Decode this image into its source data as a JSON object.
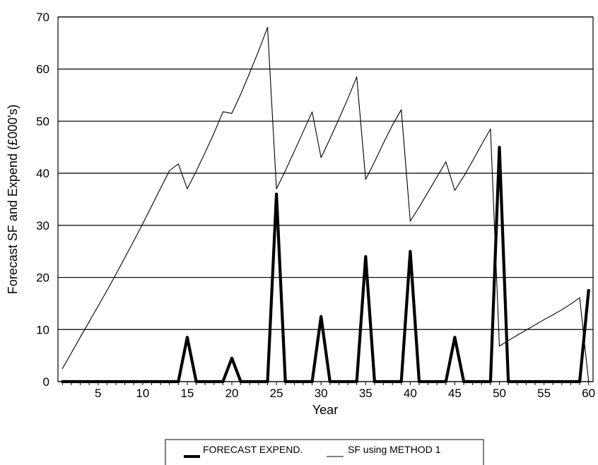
{
  "chart_data": {
    "type": "line",
    "title": "",
    "xlabel": "Year",
    "ylabel": "Forecast SF and Expend (£000's)",
    "xlim": [
      0.5,
      60.5
    ],
    "ylim": [
      0,
      70
    ],
    "x_ticks": [
      5,
      10,
      15,
      20,
      25,
      30,
      35,
      40,
      45,
      50,
      55,
      60
    ],
    "y_ticks": [
      0,
      10,
      20,
      30,
      40,
      50,
      60,
      70
    ],
    "grid": "horizontal",
    "legend_position": "bottom",
    "series": [
      {
        "name": "FORECAST EXPEND.",
        "style": "thick",
        "color": "#000000",
        "points": [
          [
            1,
            0
          ],
          [
            14,
            0
          ],
          [
            15,
            8.5
          ],
          [
            16,
            0
          ],
          [
            19,
            0
          ],
          [
            20,
            4.5
          ],
          [
            21,
            0
          ],
          [
            24,
            0
          ],
          [
            25,
            36
          ],
          [
            26,
            0
          ],
          [
            29,
            0
          ],
          [
            30,
            12.5
          ],
          [
            31,
            0
          ],
          [
            34,
            0
          ],
          [
            35,
            24
          ],
          [
            36,
            0
          ],
          [
            39,
            0
          ],
          [
            40,
            25
          ],
          [
            41,
            0
          ],
          [
            44,
            0
          ],
          [
            45,
            8.5
          ],
          [
            46,
            0
          ],
          [
            49,
            0
          ],
          [
            50,
            45
          ],
          [
            51,
            0
          ],
          [
            59,
            0
          ],
          [
            60,
            17.5
          ]
        ]
      },
      {
        "name": "SF using METHOD 1",
        "style": "thin",
        "color": "#000000",
        "points": [
          [
            1,
            2.5
          ],
          [
            2,
            5.5
          ],
          [
            3,
            8.5
          ],
          [
            4,
            11.5
          ],
          [
            5,
            14.5
          ],
          [
            6,
            17.5
          ],
          [
            7,
            20.6
          ],
          [
            8,
            23.8
          ],
          [
            9,
            27
          ],
          [
            10,
            30.3
          ],
          [
            11,
            33.7
          ],
          [
            12,
            37.1
          ],
          [
            13,
            40.5
          ],
          [
            14,
            41.8
          ],
          [
            15,
            37
          ],
          [
            16,
            40.4
          ],
          [
            17,
            44
          ],
          [
            18,
            47.7
          ],
          [
            19,
            51.8
          ],
          [
            20,
            51.5
          ],
          [
            21,
            55.2
          ],
          [
            22,
            59.3
          ],
          [
            23,
            63.5
          ],
          [
            24,
            68
          ],
          [
            25,
            37
          ],
          [
            26,
            40.5
          ],
          [
            27,
            44.2
          ],
          [
            28,
            48
          ],
          [
            29,
            51.8
          ],
          [
            30,
            43
          ],
          [
            31,
            46.6
          ],
          [
            32,
            50.4
          ],
          [
            33,
            54.3
          ],
          [
            34,
            58.5
          ],
          [
            35,
            38.8
          ],
          [
            36,
            42.2
          ],
          [
            37,
            45.8
          ],
          [
            38,
            49.2
          ],
          [
            39,
            52.2
          ],
          [
            40,
            30.8
          ],
          [
            41,
            33.5
          ],
          [
            42,
            36.4
          ],
          [
            43,
            39.3
          ],
          [
            44,
            42.2
          ],
          [
            45,
            36.7
          ],
          [
            46,
            39.4
          ],
          [
            47,
            42.4
          ],
          [
            48,
            45.5
          ],
          [
            49,
            48.5
          ],
          [
            50,
            6.8
          ],
          [
            51,
            7.9
          ],
          [
            52,
            8.9
          ],
          [
            53,
            9.9
          ],
          [
            54,
            10.9
          ],
          [
            55,
            11.9
          ],
          [
            56,
            12.8
          ],
          [
            57,
            13.8
          ],
          [
            58,
            14.9
          ],
          [
            59,
            16.1
          ],
          [
            60,
            0
          ]
        ]
      }
    ]
  }
}
